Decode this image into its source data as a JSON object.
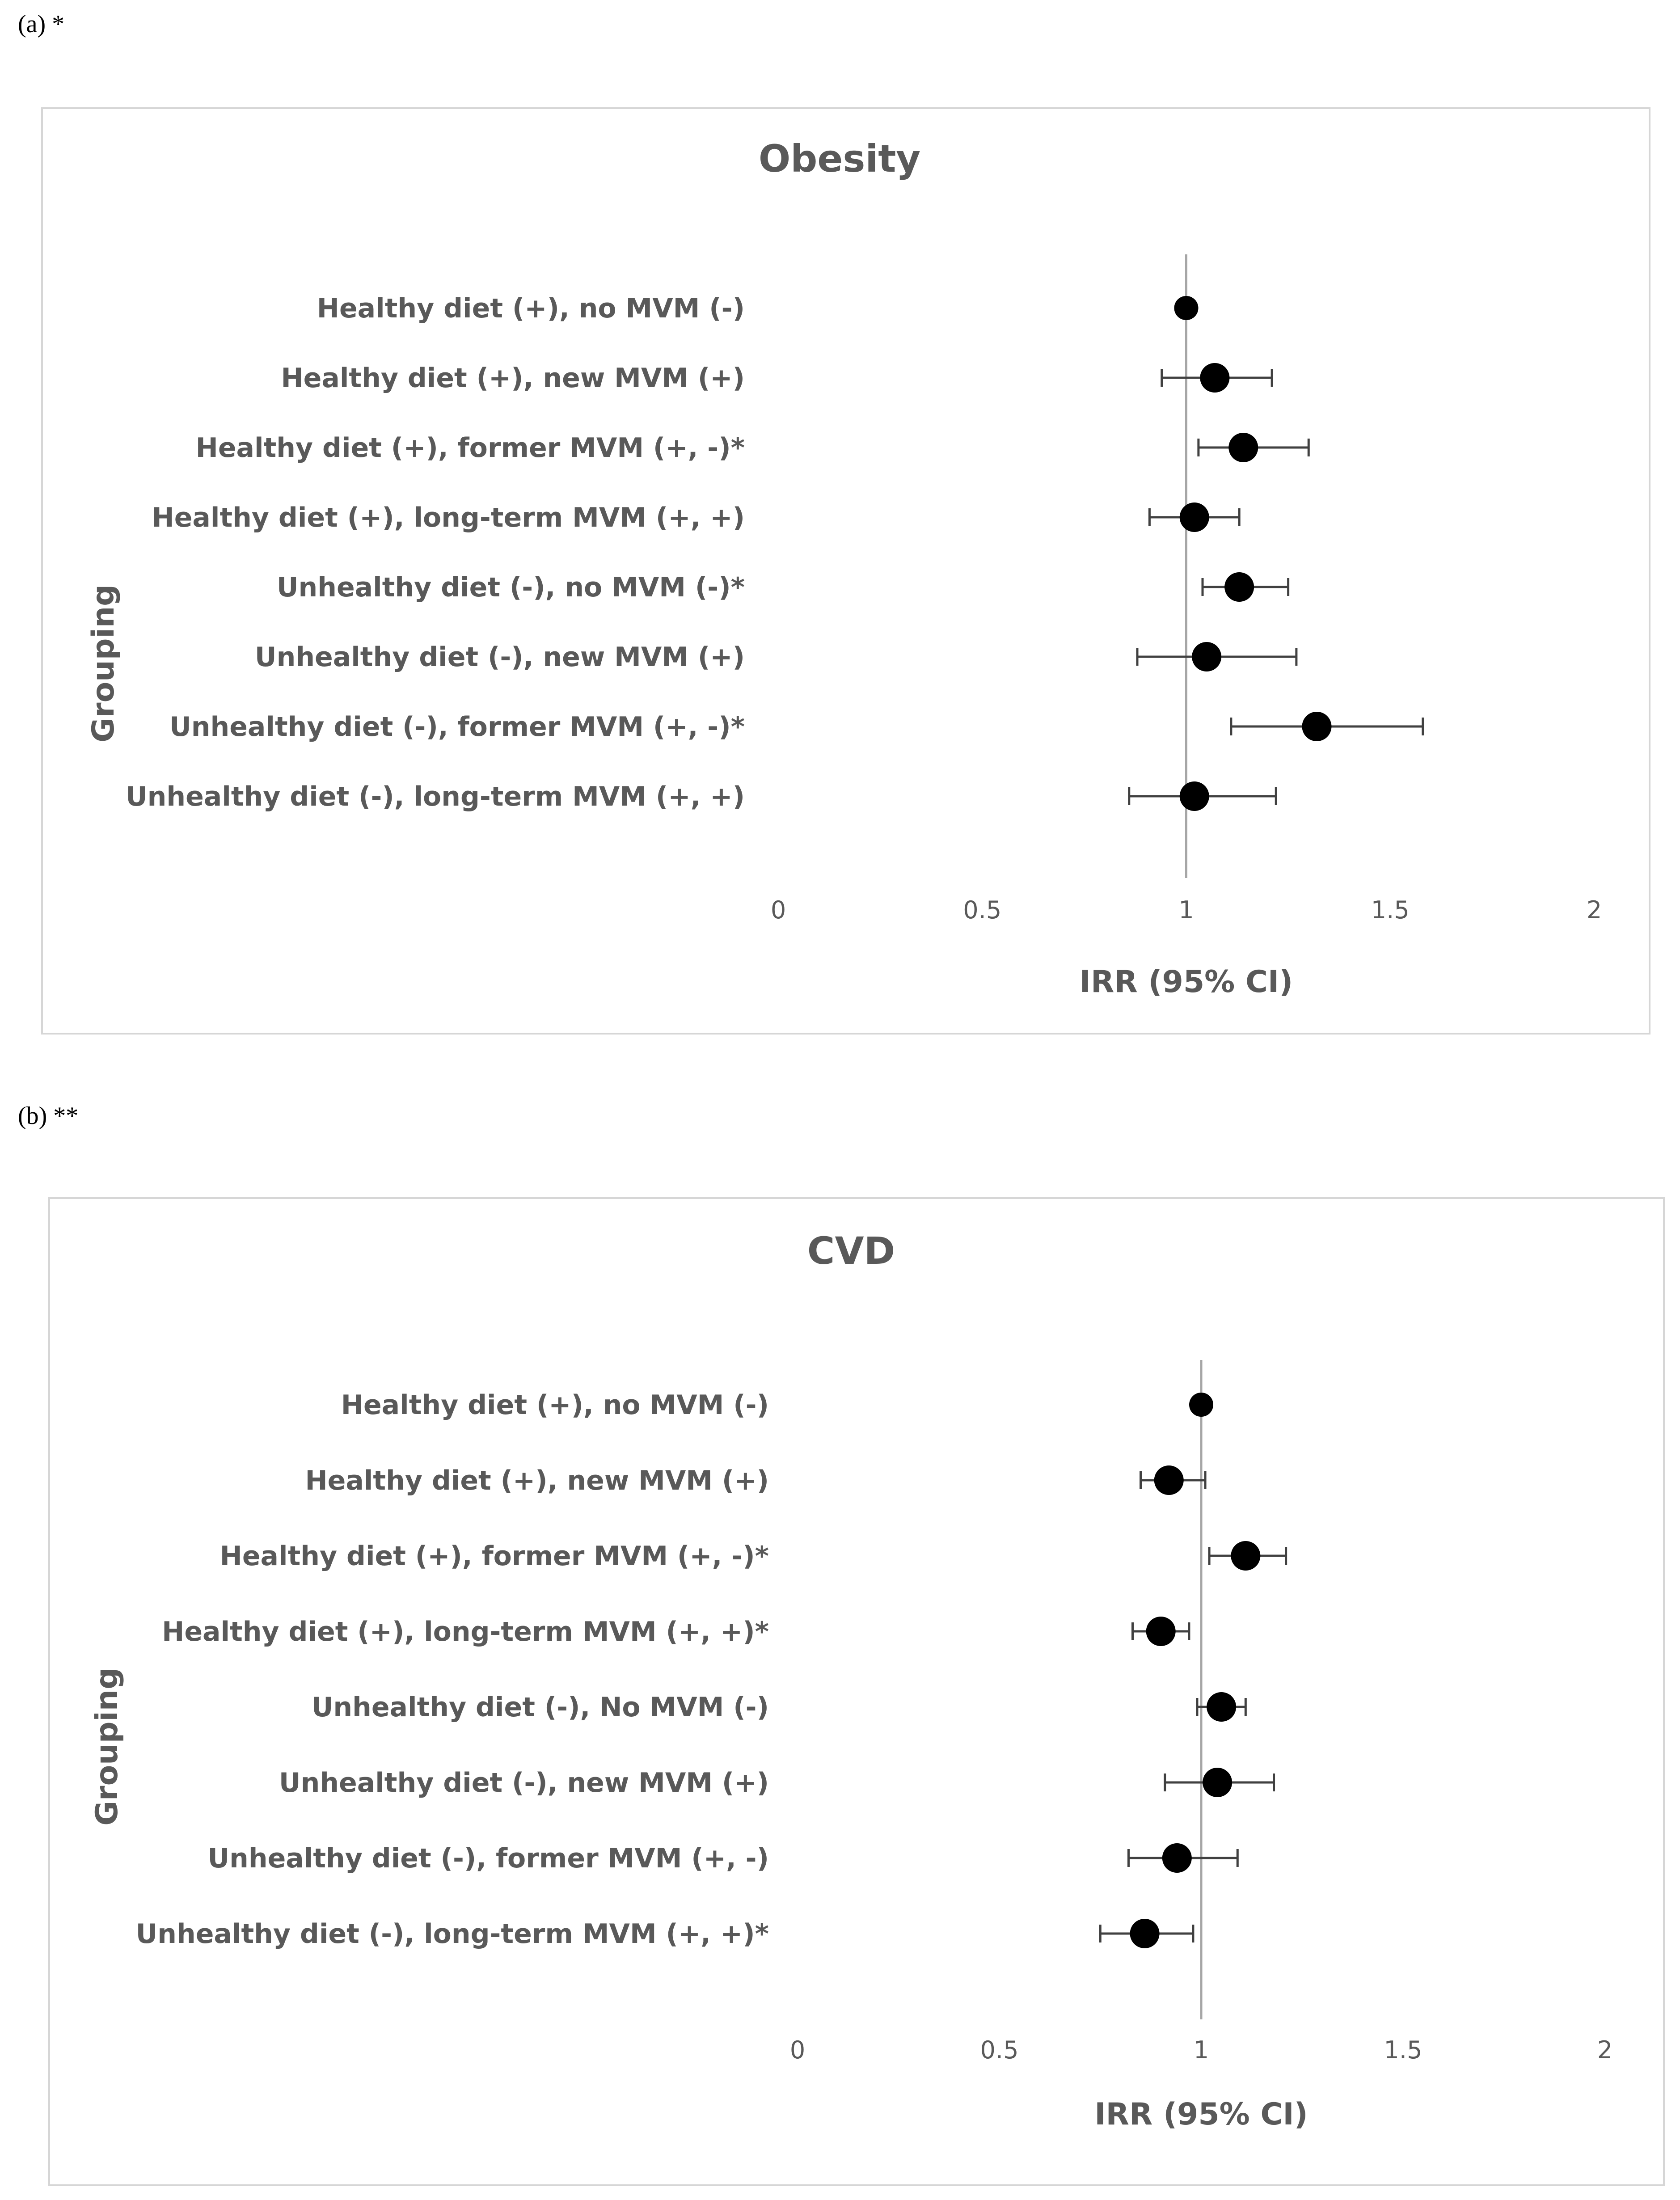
{
  "panels": [
    {
      "label": "(a) *"
    },
    {
      "label": "(b) **"
    }
  ],
  "chart_data": [
    {
      "type": "scatter",
      "title": "Obesity",
      "xlabel": "IRR (95% CI)",
      "ylabel": "Grouping",
      "xlim": [
        0,
        2
      ],
      "xticks": [
        "0",
        "0.5",
        "1",
        "1.5",
        "2"
      ],
      "xtick_values": [
        0,
        0.5,
        1,
        1.5,
        2
      ],
      "reference_line": 1,
      "grid": false,
      "rows": [
        {
          "label": "Healthy diet (+), no MVM (-)",
          "irr": 1.0,
          "lower": 1.0,
          "upper": 1.0
        },
        {
          "label": "Healthy diet (+), new MVM (+)",
          "irr": 1.07,
          "lower": 0.94,
          "upper": 1.21
        },
        {
          "label": "Healthy diet (+), former MVM (+, -)*",
          "irr": 1.14,
          "lower": 1.03,
          "upper": 1.3
        },
        {
          "label": "Healthy diet (+), long-term MVM (+, +)",
          "irr": 1.02,
          "lower": 0.91,
          "upper": 1.13
        },
        {
          "label": "Unhealthy diet (-), no MVM (-)*",
          "irr": 1.13,
          "lower": 1.04,
          "upper": 1.25
        },
        {
          "label": "Unhealthy diet (-), new MVM (+)",
          "irr": 1.05,
          "lower": 0.88,
          "upper": 1.27
        },
        {
          "label": "Unhealthy diet (-), former MVM (+, -)*",
          "irr": 1.32,
          "lower": 1.11,
          "upper": 1.58
        },
        {
          "label": "Unhealthy diet (-), long-term MVM (+, +)",
          "irr": 1.02,
          "lower": 0.86,
          "upper": 1.22
        }
      ]
    },
    {
      "type": "scatter",
      "title": "CVD",
      "xlabel": "IRR (95% CI)",
      "ylabel": "Grouping",
      "xlim": [
        0,
        2
      ],
      "xticks": [
        "0",
        "0.5",
        "1",
        "1.5",
        "2"
      ],
      "xtick_values": [
        0,
        0.5,
        1,
        1.5,
        2
      ],
      "reference_line": 1,
      "grid": false,
      "rows": [
        {
          "label": "Healthy diet (+), no MVM (-)",
          "irr": 1.0,
          "lower": 1.0,
          "upper": 1.0
        },
        {
          "label": "Healthy diet (+), new MVM (+)",
          "irr": 0.92,
          "lower": 0.85,
          "upper": 1.01
        },
        {
          "label": "Healthy diet (+), former MVM (+, -)*",
          "irr": 1.11,
          "lower": 1.02,
          "upper": 1.21
        },
        {
          "label": "Healthy diet (+), long-term MVM (+, +)*",
          "irr": 0.9,
          "lower": 0.83,
          "upper": 0.97
        },
        {
          "label": "Unhealthy diet (-), No MVM (-)",
          "irr": 1.05,
          "lower": 0.99,
          "upper": 1.11
        },
        {
          "label": "Unhealthy diet (-), new MVM (+)",
          "irr": 1.04,
          "lower": 0.91,
          "upper": 1.18
        },
        {
          "label": "Unhealthy diet (-), former MVM (+, -)",
          "irr": 0.94,
          "lower": 0.82,
          "upper": 1.09
        },
        {
          "label": "Unhealthy diet (-), long-term MVM (+, +)*",
          "irr": 0.86,
          "lower": 0.75,
          "upper": 0.98
        }
      ]
    }
  ]
}
